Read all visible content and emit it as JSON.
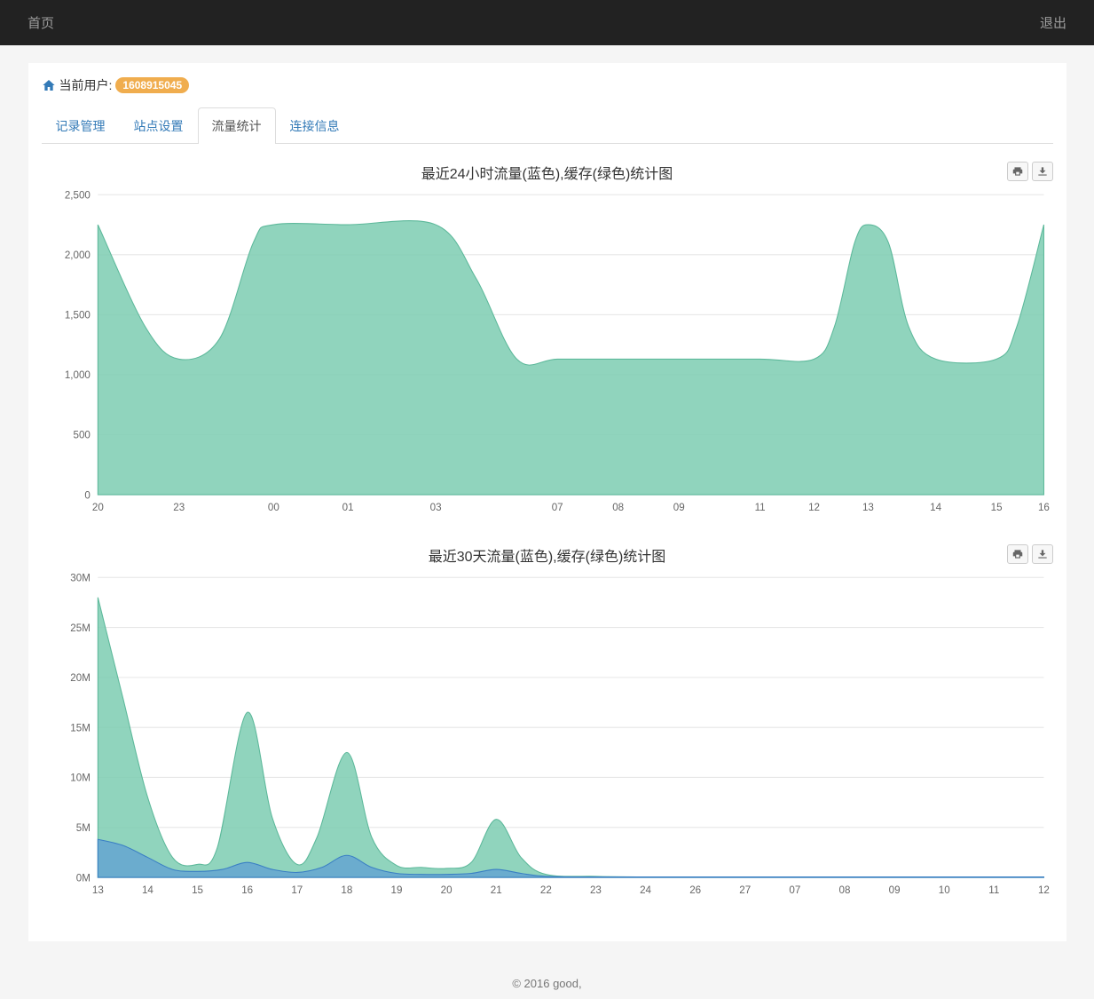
{
  "topbar": {
    "home_label": "首页",
    "logout_label": "退出"
  },
  "user": {
    "prefix": "当前用户:",
    "id": "1608915045"
  },
  "tabs": [
    {
      "label": "记录管理",
      "active": false
    },
    {
      "label": "站点设置",
      "active": false
    },
    {
      "label": "流量统计",
      "active": true
    },
    {
      "label": "连接信息",
      "active": false
    }
  ],
  "chart24h": {
    "type": "area",
    "title": "最近24小时流量(蓝色),缓存(绿色)统计图",
    "title_fontsize": 16,
    "ylim": [
      0,
      2500
    ],
    "ytick_step": 500,
    "ytick_labels": [
      "0",
      "500",
      "1,000",
      "1,500",
      "2,000",
      "2,500"
    ],
    "x_labels": [
      "20",
      "23",
      "00",
      "01",
      "03",
      "07",
      "08",
      "09",
      "11",
      "12",
      "13",
      "14",
      "15",
      "16"
    ],
    "x_positions": [
      0,
      1.2,
      2.6,
      3.7,
      5.0,
      6.8,
      7.7,
      8.6,
      9.8,
      10.6,
      11.4,
      12.4,
      13.3,
      14.0
    ],
    "series_green": {
      "color_fill": "#7dccb2",
      "color_stroke": "#5cb89a",
      "opacity": 0.85,
      "points": [
        [
          0,
          2250
        ],
        [
          0.7,
          1400
        ],
        [
          1.2,
          1130
        ],
        [
          1.8,
          1300
        ],
        [
          2.3,
          2100
        ],
        [
          2.6,
          2250
        ],
        [
          3.7,
          2250
        ],
        [
          5.0,
          2250
        ],
        [
          5.6,
          1800
        ],
        [
          6.2,
          1130
        ],
        [
          6.8,
          1130
        ],
        [
          7.7,
          1130
        ],
        [
          8.6,
          1130
        ],
        [
          9.8,
          1130
        ],
        [
          10.6,
          1130
        ],
        [
          10.9,
          1400
        ],
        [
          11.2,
          2100
        ],
        [
          11.4,
          2250
        ],
        [
          11.7,
          2100
        ],
        [
          12.0,
          1400
        ],
        [
          12.4,
          1130
        ],
        [
          13.3,
          1130
        ],
        [
          13.6,
          1400
        ],
        [
          14.0,
          2250
        ]
      ]
    },
    "background_color": "#ffffff",
    "grid_color": "#e6e6e6"
  },
  "chart30d": {
    "type": "area",
    "title": "最近30天流量(蓝色),缓存(绿色)统计图",
    "title_fontsize": 16,
    "ylim": [
      0,
      30
    ],
    "ytick_step": 5,
    "ytick_labels": [
      "0M",
      "5M",
      "10M",
      "15M",
      "20M",
      "25M",
      "30M"
    ],
    "x_labels": [
      "13",
      "14",
      "15",
      "16",
      "17",
      "18",
      "19",
      "20",
      "21",
      "22",
      "23",
      "24",
      "26",
      "27",
      "07",
      "08",
      "09",
      "10",
      "11",
      "12"
    ],
    "series_green": {
      "color_fill": "#7dccb2",
      "color_stroke": "#5cb89a",
      "opacity": 0.85,
      "points": [
        [
          0,
          28
        ],
        [
          0.5,
          18
        ],
        [
          1.0,
          8
        ],
        [
          1.5,
          2
        ],
        [
          2.0,
          1.3
        ],
        [
          2.4,
          3
        ],
        [
          3.0,
          16.5
        ],
        [
          3.5,
          6
        ],
        [
          4.0,
          1.3
        ],
        [
          4.4,
          4
        ],
        [
          5.0,
          12.5
        ],
        [
          5.5,
          4
        ],
        [
          6.0,
          1.2
        ],
        [
          6.5,
          1.0
        ],
        [
          7.0,
          0.9
        ],
        [
          7.5,
          1.5
        ],
        [
          8.0,
          5.8
        ],
        [
          8.5,
          2
        ],
        [
          9.0,
          0.3
        ],
        [
          10.0,
          0.1
        ],
        [
          11.0,
          0.05
        ],
        [
          12.0,
          0.05
        ],
        [
          13.0,
          0.05
        ],
        [
          14.0,
          0.05
        ],
        [
          15.0,
          0.05
        ],
        [
          16.0,
          0.05
        ],
        [
          17.0,
          0.05
        ],
        [
          18.0,
          0.05
        ],
        [
          19.0,
          0.05
        ]
      ]
    },
    "series_blue": {
      "color_fill": "#5b9bd5",
      "color_stroke": "#3a7fc4",
      "opacity": 0.7,
      "points": [
        [
          0,
          3.8
        ],
        [
          0.5,
          3.2
        ],
        [
          1.0,
          2.0
        ],
        [
          1.5,
          0.8
        ],
        [
          2.0,
          0.6
        ],
        [
          2.5,
          0.8
        ],
        [
          3.0,
          1.5
        ],
        [
          3.5,
          0.8
        ],
        [
          4.0,
          0.5
        ],
        [
          4.5,
          1.0
        ],
        [
          5.0,
          2.2
        ],
        [
          5.5,
          1.0
        ],
        [
          6.0,
          0.4
        ],
        [
          6.5,
          0.3
        ],
        [
          7.0,
          0.3
        ],
        [
          7.5,
          0.4
        ],
        [
          8.0,
          0.8
        ],
        [
          8.5,
          0.4
        ],
        [
          9.0,
          0.1
        ],
        [
          10.0,
          0.05
        ],
        [
          11.0,
          0.05
        ],
        [
          12.0,
          0.05
        ],
        [
          13.0,
          0.05
        ],
        [
          14.0,
          0.05
        ],
        [
          15.0,
          0.05
        ],
        [
          16.0,
          0.05
        ],
        [
          17.0,
          0.05
        ],
        [
          18.0,
          0.05
        ],
        [
          19.0,
          0.05
        ]
      ]
    },
    "background_color": "#ffffff",
    "grid_color": "#e6e6e6"
  },
  "footer": {
    "text": "© 2016 good,"
  }
}
